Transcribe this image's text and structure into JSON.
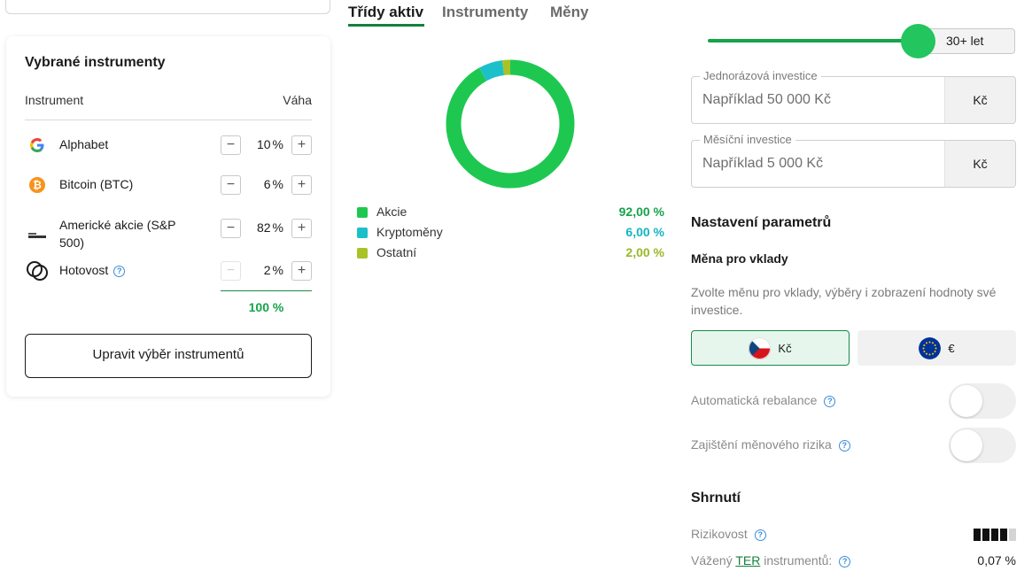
{
  "selected": {
    "title": "Vybrané instrumenty",
    "col_instrument": "Instrument",
    "col_weight": "Váha",
    "rows": [
      {
        "name": "Alphabet",
        "value": "10",
        "unit": "%"
      },
      {
        "name": "Bitcoin (BTC)",
        "value": "6",
        "unit": "%"
      },
      {
        "name": "Americké akcie (S&P 500)",
        "value": "82",
        "unit": "%"
      },
      {
        "name": "Hotovost",
        "value": "2",
        "unit": "%"
      }
    ],
    "stepper_minus": "−",
    "stepper_plus": "+",
    "total": "100 %",
    "edit_button": "Upravit výběr instrumentů"
  },
  "tabs": {
    "asset_classes": "Třídy aktiv",
    "instruments": "Instrumenty",
    "currencies": "Měny"
  },
  "chart_data": {
    "type": "pie",
    "categories": [
      "Akcie",
      "Kryptoměny",
      "Ostatní"
    ],
    "values": [
      92,
      6,
      2
    ],
    "labels": [
      "92,00 %",
      "6,00 %",
      "2,00 %"
    ],
    "colors": [
      "#1ec850",
      "#1cc0c8",
      "#a8c228"
    ],
    "label_colors": [
      "#16a34a",
      "#13b5c2",
      "#9ab825"
    ]
  },
  "horizon": {
    "label": "30+ let",
    "level": 1.0
  },
  "one_time": {
    "legend": "Jednorázová investice",
    "placeholder": "Například 50 000 Kč",
    "unit": "Kč"
  },
  "monthly": {
    "legend": "Měsíční investice",
    "placeholder": "Například 5 000 Kč",
    "unit": "Kč"
  },
  "settings": {
    "title": "Nastavení parametrů",
    "currency_title": "Měna pro vklady",
    "currency_desc": "Zvolte měnu pro vklady, výběry i zobrazení hodnoty své investice.",
    "czk_label": "Kč",
    "eur_label": "€",
    "auto_rebalance": "Automatická rebalance",
    "fx_hedge": "Zajištění měnového rizika"
  },
  "summary": {
    "title": "Shrnutí",
    "risk_label": "Rizikovost",
    "risk_level": 4,
    "risk_max": 5,
    "ter_prefix": "Vážený",
    "ter_link": "TER",
    "ter_suffix": "instrumentů:",
    "ter_value": "0,07 %"
  },
  "icons": {
    "help": "?",
    "bitcoin": "₿"
  }
}
